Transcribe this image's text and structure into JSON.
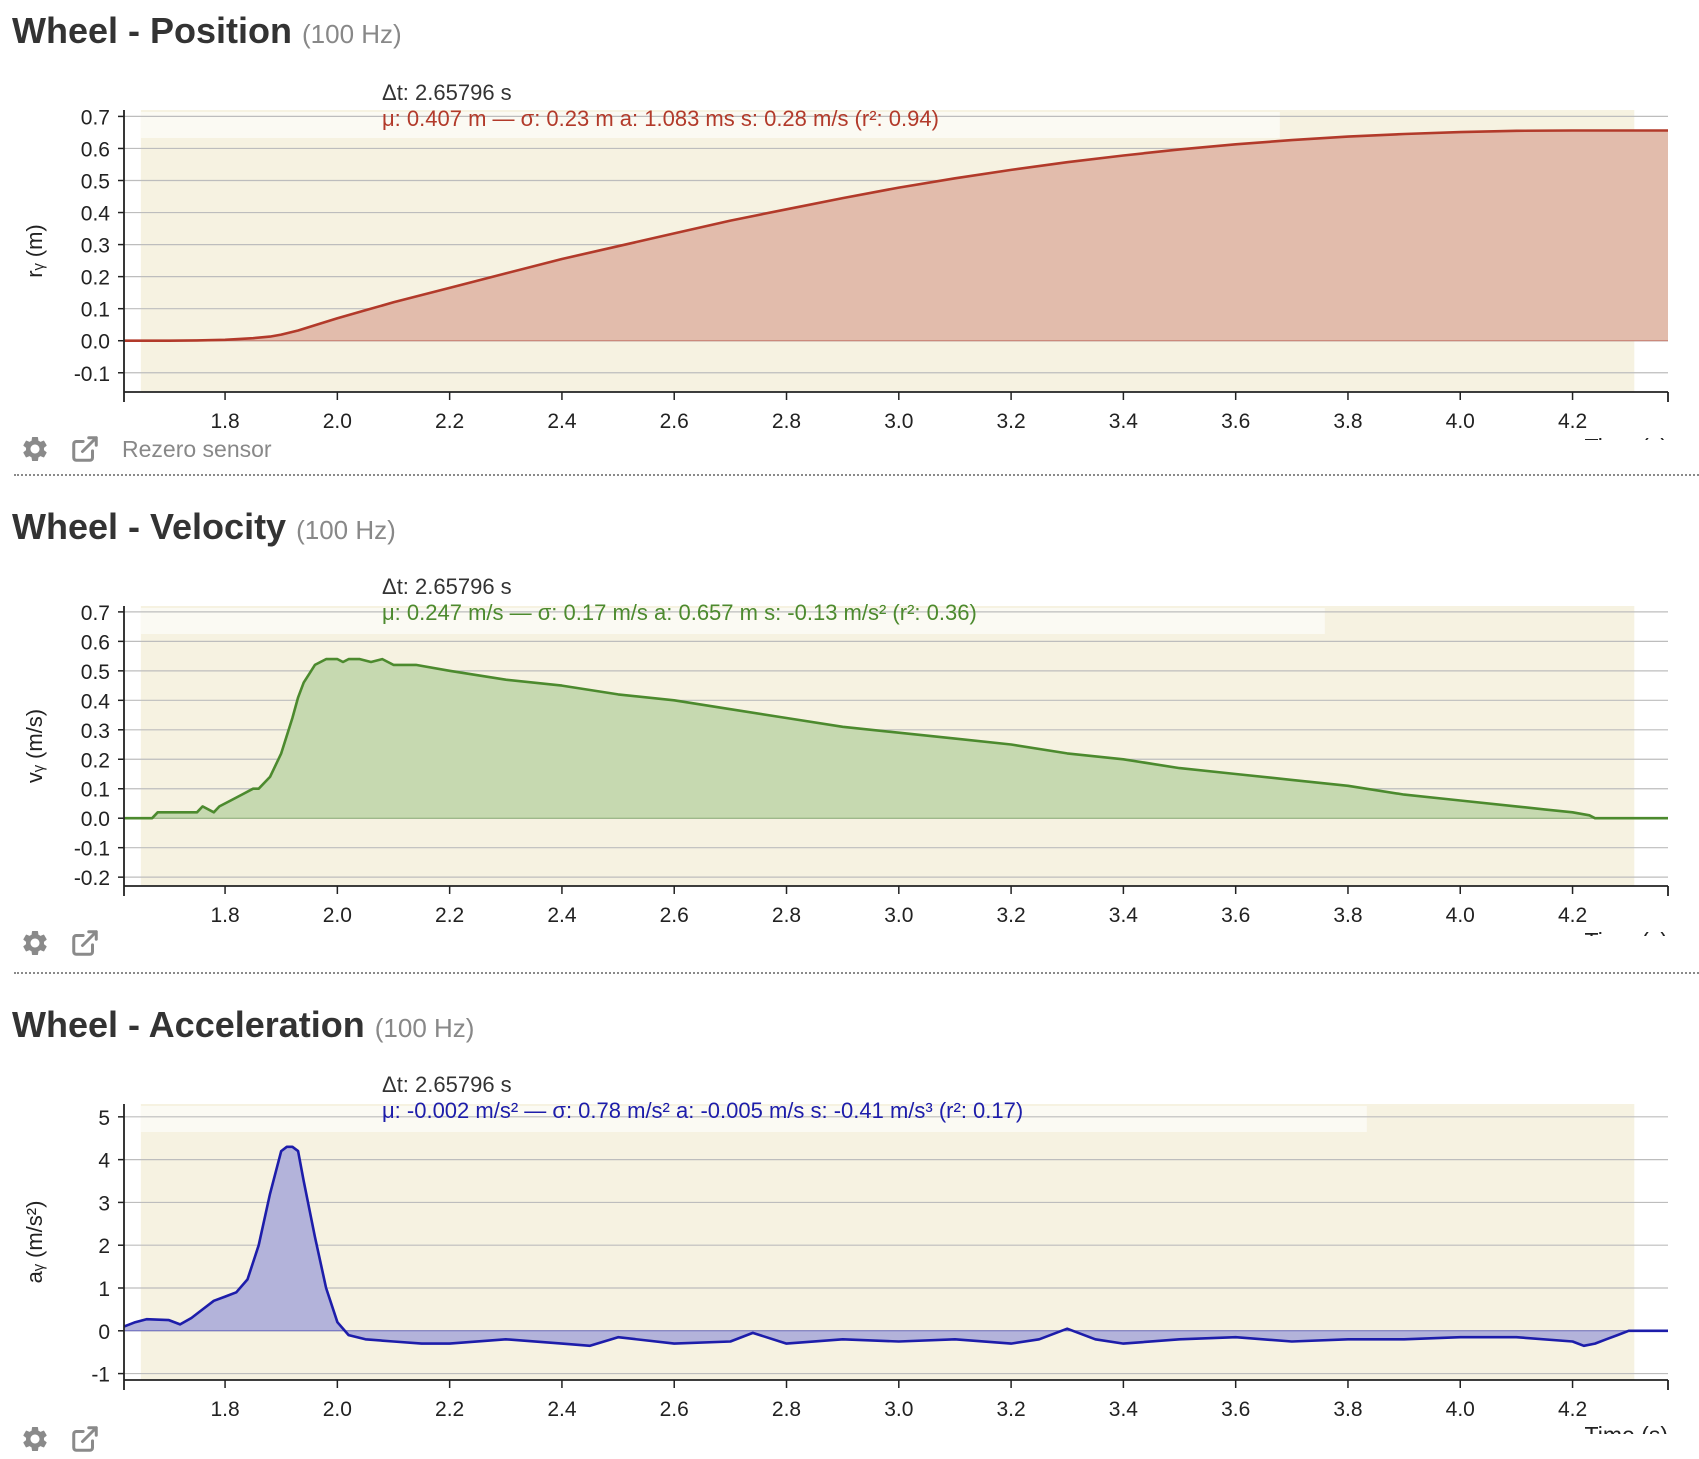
{
  "panels": [
    {
      "id": "position",
      "title": "Wheel - Position",
      "rate": "(100 Hz)",
      "footer_action": "Rezero sensor",
      "color": "#b23a2a",
      "fill_color": "#e2bcac",
      "stats": {
        "dt": "Δt: 2.65796 s",
        "summary": "μ: 0.407 m — σ: 0.23 m   a: 1.083 ms   s: 0.28 m/s (r²: 0.94)"
      },
      "chart_data": {
        "type": "area",
        "xlabel": "Time (s)",
        "ylabel": "rᵧ (m)",
        "xlim": [
          1.62,
          4.37
        ],
        "ylim": [
          -0.16,
          0.72
        ],
        "xticks": [
          "1.8",
          "2.0",
          "2.2",
          "2.4",
          "2.6",
          "2.8",
          "3.0",
          "3.2",
          "3.4",
          "3.6",
          "3.8",
          "4.0",
          "4.2"
        ],
        "yticks": [
          "0.7",
          "0.6",
          "0.5",
          "0.4",
          "0.3",
          "0.2",
          "0.1",
          "0.0",
          "-0.1"
        ],
        "selection_range": [
          1.65,
          4.31
        ],
        "x": [
          1.62,
          1.7,
          1.75,
          1.8,
          1.85,
          1.88,
          1.9,
          1.93,
          1.96,
          2.0,
          2.05,
          2.1,
          2.2,
          2.3,
          2.4,
          2.5,
          2.6,
          2.7,
          2.8,
          2.9,
          3.0,
          3.1,
          3.2,
          3.3,
          3.4,
          3.5,
          3.6,
          3.7,
          3.8,
          3.9,
          4.0,
          4.1,
          4.2,
          4.31,
          4.37
        ],
        "series": [
          {
            "values": [
              0.0,
              0.0,
              0.001,
              0.003,
              0.008,
              0.013,
              0.019,
              0.032,
              0.048,
              0.07,
              0.095,
              0.12,
              0.165,
              0.21,
              0.255,
              0.295,
              0.335,
              0.375,
              0.41,
              0.445,
              0.478,
              0.507,
              0.533,
              0.557,
              0.578,
              0.597,
              0.613,
              0.626,
              0.637,
              0.645,
              0.651,
              0.655,
              0.656,
              0.656,
              0.656
            ]
          }
        ]
      }
    },
    {
      "id": "velocity",
      "title": "Wheel - Velocity",
      "rate": "(100 Hz)",
      "color": "#4c8a2e",
      "fill_color": "#c6d9b0",
      "stats": {
        "dt": "Δt: 2.65796 s",
        "summary": "μ: 0.247 m/s — σ: 0.17 m/s   a: 0.657 m   s: -0.13 m/s² (r²: 0.36)"
      },
      "chart_data": {
        "type": "area",
        "xlabel": "Time (s)",
        "ylabel": "vᵧ (m/s)",
        "xlim": [
          1.62,
          4.37
        ],
        "ylim": [
          -0.23,
          0.72
        ],
        "xticks": [
          "1.8",
          "2.0",
          "2.2",
          "2.4",
          "2.6",
          "2.8",
          "3.0",
          "3.2",
          "3.4",
          "3.6",
          "3.8",
          "4.0",
          "4.2"
        ],
        "yticks": [
          "0.7",
          "0.6",
          "0.5",
          "0.4",
          "0.3",
          "0.2",
          "0.1",
          "0.0",
          "-0.1",
          "-0.2"
        ],
        "selection_range": [
          1.65,
          4.31
        ],
        "x": [
          1.62,
          1.67,
          1.68,
          1.75,
          1.76,
          1.78,
          1.79,
          1.81,
          1.83,
          1.85,
          1.86,
          1.88,
          1.89,
          1.9,
          1.91,
          1.92,
          1.93,
          1.94,
          1.95,
          1.96,
          1.98,
          2.0,
          2.01,
          2.02,
          2.04,
          2.06,
          2.08,
          2.1,
          2.14,
          2.2,
          2.3,
          2.4,
          2.5,
          2.6,
          2.7,
          2.8,
          2.9,
          3.0,
          3.1,
          3.2,
          3.3,
          3.4,
          3.5,
          3.6,
          3.7,
          3.8,
          3.9,
          4.0,
          4.1,
          4.15,
          4.2,
          4.23,
          4.24,
          4.37
        ],
        "series": [
          {
            "values": [
              0.0,
              0.0,
              0.02,
              0.02,
              0.04,
              0.02,
              0.04,
              0.06,
              0.08,
              0.1,
              0.1,
              0.14,
              0.18,
              0.22,
              0.28,
              0.34,
              0.41,
              0.46,
              0.49,
              0.52,
              0.54,
              0.54,
              0.53,
              0.54,
              0.54,
              0.53,
              0.54,
              0.52,
              0.52,
              0.5,
              0.47,
              0.45,
              0.42,
              0.4,
              0.37,
              0.34,
              0.31,
              0.29,
              0.27,
              0.25,
              0.22,
              0.2,
              0.17,
              0.15,
              0.13,
              0.11,
              0.08,
              0.06,
              0.04,
              0.03,
              0.02,
              0.01,
              0.0,
              0.0
            ]
          }
        ]
      }
    },
    {
      "id": "acceleration",
      "title": "Wheel - Acceleration",
      "rate": "(100 Hz)",
      "color": "#1d1daa",
      "fill_color": "#b3b3da",
      "stats": {
        "dt": "Δt: 2.65796 s",
        "summary": "μ: -0.002 m/s² — σ: 0.78 m/s²   a: -0.005 m/s   s: -0.41 m/s³ (r²: 0.17)"
      },
      "chart_data": {
        "type": "area",
        "xlabel": "Time (s)",
        "ylabel": "aᵧ (m/s²)",
        "xlim": [
          1.62,
          4.37
        ],
        "ylim": [
          -1.15,
          5.3
        ],
        "xticks": [
          "1.8",
          "2.0",
          "2.2",
          "2.4",
          "2.6",
          "2.8",
          "3.0",
          "3.2",
          "3.4",
          "3.6",
          "3.8",
          "4.0",
          "4.2"
        ],
        "yticks": [
          "5",
          "4",
          "3",
          "2",
          "1",
          "0",
          "-1"
        ],
        "selection_range": [
          1.65,
          4.31
        ],
        "x": [
          1.62,
          1.64,
          1.66,
          1.7,
          1.72,
          1.74,
          1.76,
          1.78,
          1.8,
          1.82,
          1.84,
          1.86,
          1.88,
          1.9,
          1.91,
          1.92,
          1.93,
          1.94,
          1.96,
          1.98,
          2.0,
          2.02,
          2.05,
          2.1,
          2.15,
          2.2,
          2.3,
          2.4,
          2.45,
          2.5,
          2.6,
          2.7,
          2.74,
          2.8,
          2.9,
          3.0,
          3.1,
          3.2,
          3.25,
          3.3,
          3.35,
          3.4,
          3.5,
          3.6,
          3.7,
          3.8,
          3.9,
          4.0,
          4.1,
          4.2,
          4.22,
          4.24,
          4.26,
          4.28,
          4.3,
          4.37
        ],
        "series": [
          {
            "values": [
              0.1,
              0.2,
              0.27,
              0.25,
              0.15,
              0.3,
              0.5,
              0.7,
              0.8,
              0.9,
              1.2,
              2.0,
              3.2,
              4.2,
              4.3,
              4.3,
              4.2,
              3.5,
              2.2,
              1.0,
              0.2,
              -0.1,
              -0.2,
              -0.25,
              -0.3,
              -0.3,
              -0.2,
              -0.3,
              -0.35,
              -0.15,
              -0.3,
              -0.25,
              -0.05,
              -0.3,
              -0.2,
              -0.25,
              -0.2,
              -0.3,
              -0.2,
              0.05,
              -0.2,
              -0.3,
              -0.2,
              -0.15,
              -0.25,
              -0.2,
              -0.2,
              -0.15,
              -0.15,
              -0.25,
              -0.35,
              -0.3,
              -0.2,
              -0.1,
              0.0,
              0.0
            ]
          }
        ]
      }
    }
  ],
  "colors": {
    "plot_background": "#f6f2e1",
    "stats_box": "#fbfaf3",
    "gridline": "#bdbdbd",
    "axis": "#222222"
  },
  "icons": {
    "settings": "gear-icon",
    "export": "external-link-icon"
  }
}
